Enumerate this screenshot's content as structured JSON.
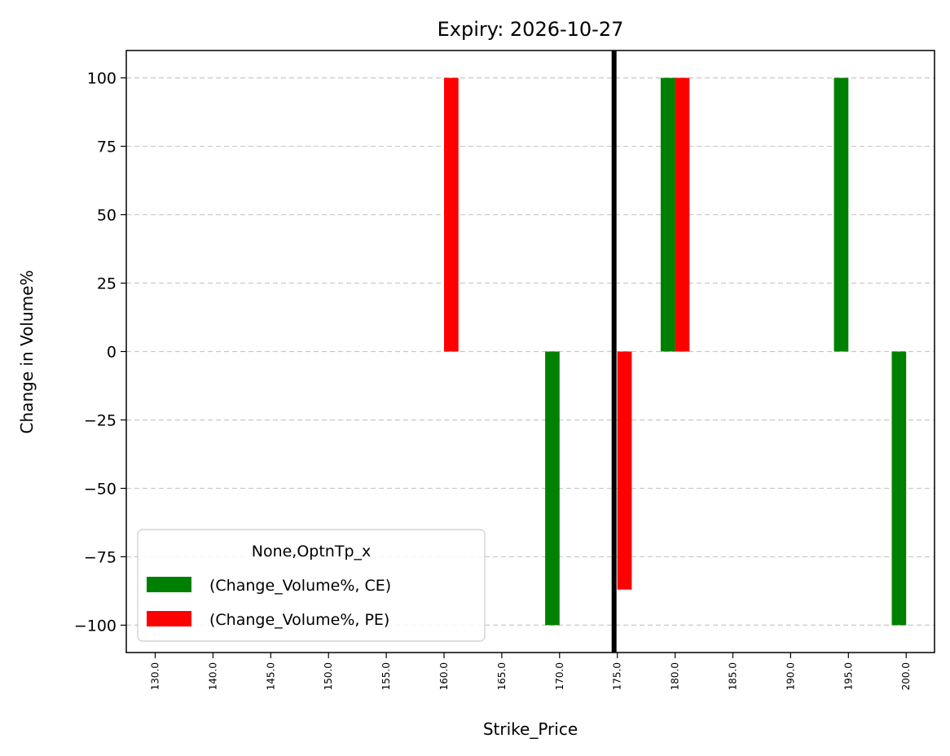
{
  "chart_data": {
    "type": "bar",
    "title": "Expiry: 2026-10-27",
    "xlabel": "Strike_Price",
    "ylabel": "Change in Volume%",
    "categories": [
      "130.0",
      "140.0",
      "145.0",
      "150.0",
      "155.0",
      "160.0",
      "165.0",
      "170.0",
      "175.0",
      "180.0",
      "185.0",
      "190.0",
      "195.0",
      "200.0"
    ],
    "series": [
      {
        "name": "(Change_Volume%, CE)",
        "color": "#008000",
        "values": [
          null,
          null,
          null,
          null,
          null,
          null,
          null,
          -100,
          null,
          100,
          null,
          null,
          100,
          -100
        ]
      },
      {
        "name": "(Change_Volume%, PE)",
        "color": "#ff0000",
        "values": [
          null,
          null,
          null,
          null,
          null,
          100,
          null,
          null,
          -87,
          100,
          null,
          null,
          null,
          null
        ]
      }
    ],
    "ylim": [
      -110,
      110
    ],
    "yticks": [
      -100,
      -75,
      -50,
      -25,
      0,
      25,
      50,
      75,
      100
    ],
    "ytick_labels": [
      "−100",
      "−75",
      "−50",
      "−25",
      "0",
      "25",
      "50",
      "75",
      "100"
    ],
    "grid": "horizontal dashed",
    "reference_line": {
      "category": "175.0",
      "color": "#000000"
    },
    "legend": {
      "title": "None,OptnTp_x",
      "placement": "lower-left"
    }
  }
}
